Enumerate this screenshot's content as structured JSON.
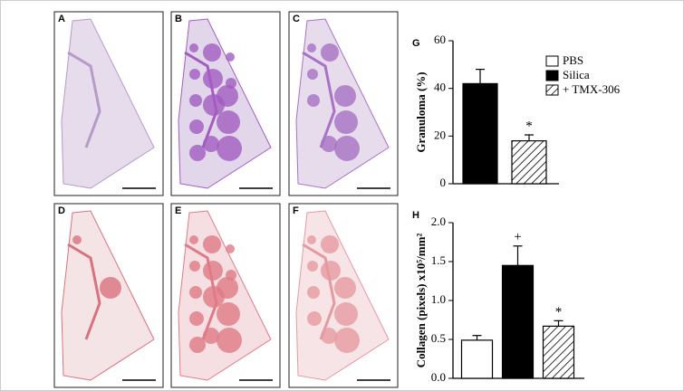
{
  "panels": [
    "A",
    "B",
    "C",
    "D",
    "E",
    "F"
  ],
  "chart_data": [
    {
      "type": "bar",
      "panel": "G",
      "ylabel": "Granuloma (%)",
      "categories": [
        null,
        null
      ],
      "values": [
        42,
        18
      ],
      "errors": [
        6,
        2.5
      ],
      "colors": [
        "#000000",
        "#ffffff"
      ],
      "hatch": [
        false,
        true
      ],
      "value_annotations": [
        null,
        "*"
      ],
      "ylim": [
        0,
        60
      ],
      "yticks": [
        0,
        20,
        40,
        60
      ],
      "legend": {
        "names": [
          "PBS",
          "Silica",
          "+ TMX-306"
        ],
        "colors": [
          "#ffffff",
          "#000000",
          "#ffffff"
        ],
        "hatch": [
          false,
          false,
          true
        ],
        "position": "top-right"
      }
    },
    {
      "type": "bar",
      "panel": "H",
      "ylabel": "Collagen (pixels) x10⁵/mm²",
      "categories": [
        null,
        null,
        null
      ],
      "values": [
        0.49,
        1.45,
        0.67
      ],
      "errors": [
        0.06,
        0.25,
        0.07
      ],
      "colors": [
        "#ffffff",
        "#000000",
        "#ffffff"
      ],
      "hatch": [
        false,
        false,
        true
      ],
      "value_annotations": [
        null,
        "+",
        "*"
      ],
      "ylim": [
        0,
        2.0
      ],
      "yticks": [
        {
          "value": 0,
          "label": "0.0"
        },
        {
          "value": 0.5,
          "label": "0.5"
        },
        {
          "value": 1,
          "label": "1.0"
        },
        {
          "value": 1.5,
          "label": "1.5"
        },
        {
          "value": 2,
          "label": "2.0"
        }
      ]
    }
  ]
}
